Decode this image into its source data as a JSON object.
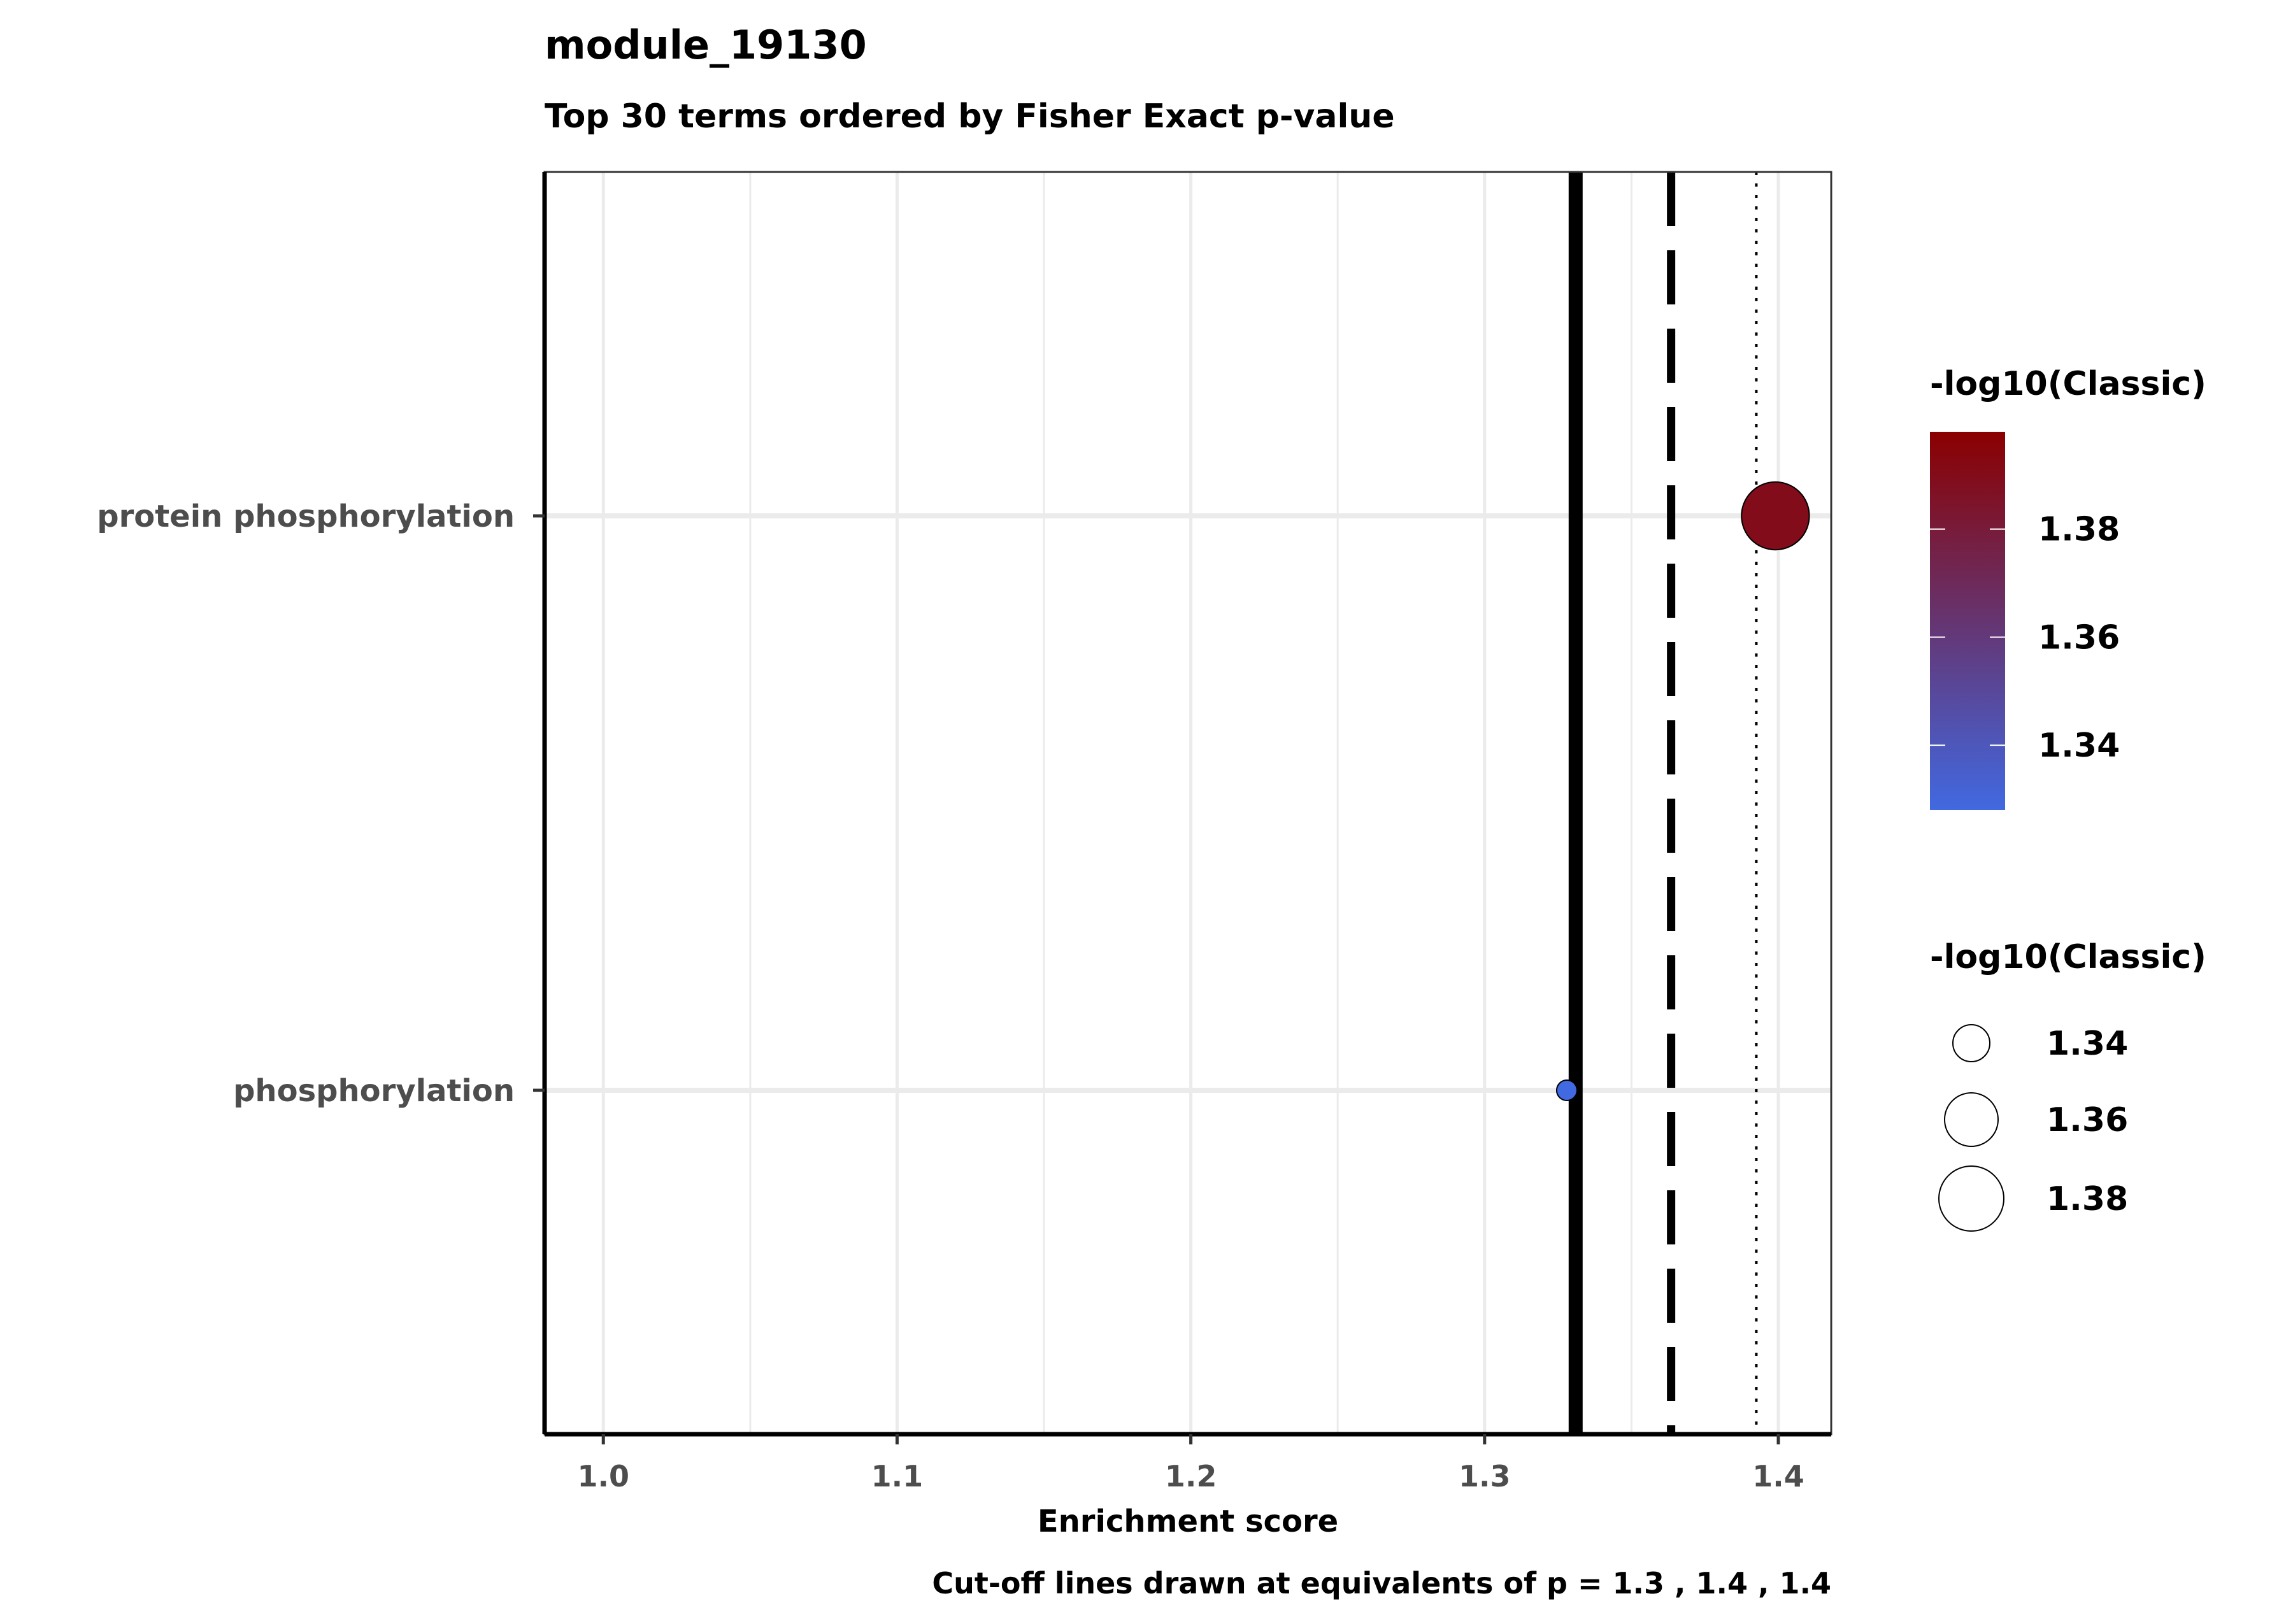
{
  "chart_data": {
    "type": "scatter",
    "title": "module_19130",
    "subtitle": "Top 30 terms ordered by Fisher Exact p-value",
    "xlabel": "Enrichment score",
    "ylabel": "",
    "caption": "Cut-off lines drawn at equivalents of p = 1.3 , 1.4 , 1.4",
    "xlim": [
      0.98,
      1.418
    ],
    "x_ticks": [
      1.0,
      1.1,
      1.2,
      1.3,
      1.4
    ],
    "x_tick_labels": [
      "1.0",
      "1.1",
      "1.2",
      "1.3",
      "1.4"
    ],
    "categories": [
      "protein phosphorylation",
      "phosphorylation"
    ],
    "points": [
      {
        "term": "protein phosphorylation",
        "x": 1.399,
        "log10_classic": 1.39
      },
      {
        "term": "phosphorylation",
        "x": 1.328,
        "log10_classic": 1.328
      }
    ],
    "cutoff_lines": [
      {
        "x": 1.331,
        "style": "solid"
      },
      {
        "x": 1.3635,
        "style": "dashed"
      },
      {
        "x": 1.3925,
        "style": "dotted"
      }
    ],
    "grid": true,
    "color_legend": {
      "title": "-log10(Classic)",
      "ticks": [
        1.34,
        1.36,
        1.38
      ],
      "tick_labels": [
        "1.34",
        "1.36",
        "1.38"
      ],
      "range": [
        1.328,
        1.398
      ],
      "low_color": "#4169E1",
      "high_color": "#8B0000",
      "placement": "right"
    },
    "size_legend": {
      "title": "-log10(Classic)",
      "values": [
        1.34,
        1.36,
        1.38
      ],
      "labels": [
        "1.34",
        "1.36",
        "1.38"
      ],
      "placement": "right"
    }
  }
}
